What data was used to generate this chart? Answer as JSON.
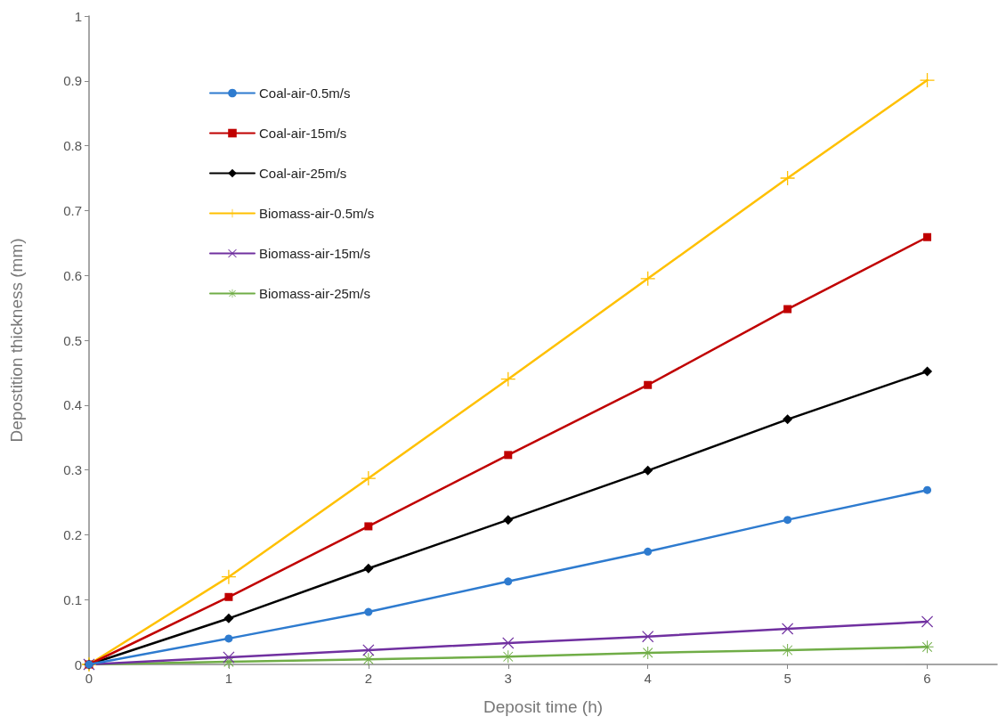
{
  "chart_data": {
    "type": "line",
    "xlabel": "Deposit time (h)",
    "ylabel": "Depostition thickness (mm)",
    "x": [
      0,
      1,
      2,
      3,
      4,
      5,
      6
    ],
    "series": [
      {
        "name": "Coal-air-0.5m/s",
        "color": "#2e7bcf",
        "marker": "circle",
        "values": [
          0,
          0.04,
          0.081,
          0.128,
          0.174,
          0.223,
          0.269
        ]
      },
      {
        "name": "Coal-air-15m/s",
        "color": "#c00000",
        "marker": "square",
        "values": [
          0,
          0.104,
          0.213,
          0.323,
          0.431,
          0.548,
          0.659
        ]
      },
      {
        "name": "Coal-air-25m/s",
        "color": "#000000",
        "marker": "diamond",
        "values": [
          0,
          0.071,
          0.148,
          0.223,
          0.299,
          0.378,
          0.452
        ]
      },
      {
        "name": "Biomass-air-0.5m/s",
        "color": "#ffc000",
        "marker": "plus",
        "values": [
          0,
          0.135,
          0.287,
          0.44,
          0.595,
          0.75,
          0.901
        ]
      },
      {
        "name": "Biomass-air-15m/s",
        "color": "#7030a0",
        "marker": "cross",
        "values": [
          0,
          0.011,
          0.022,
          0.033,
          0.043,
          0.055,
          0.066
        ]
      },
      {
        "name": "Biomass-air-25m/s",
        "color": "#70ad47",
        "marker": "star",
        "values": [
          0,
          0.004,
          0.008,
          0.012,
          0.018,
          0.022,
          0.027
        ]
      }
    ],
    "xlim": [
      0,
      6.5
    ],
    "xticks": [
      0,
      1,
      2,
      3,
      4,
      5,
      6
    ],
    "ylim": [
      0,
      1
    ],
    "yticks": [
      0,
      0.1,
      0.2,
      0.3,
      0.4,
      0.5,
      0.6,
      0.7,
      0.8,
      0.9,
      1
    ],
    "grid": false,
    "legend": "top left",
    "line_style": "solid"
  }
}
